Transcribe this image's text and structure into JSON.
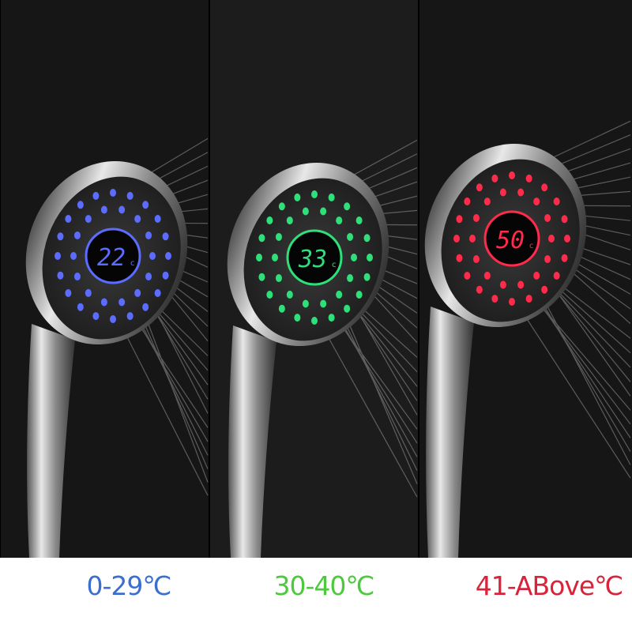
{
  "panels": [
    {
      "range_label": "0-29℃",
      "display_reading": "22",
      "color": "#3a6fd0",
      "led_color": "#5b6cff"
    },
    {
      "range_label": "30-40℃",
      "display_reading": "33",
      "color": "#4cc93c",
      "led_color": "#2fe07a"
    },
    {
      "range_label": "41-ABove℃",
      "display_reading": "50",
      "color": "#d8233a",
      "led_color": "#ff2b4a"
    }
  ]
}
